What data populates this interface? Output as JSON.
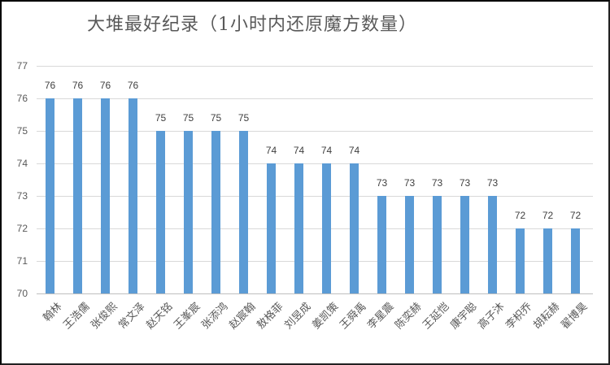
{
  "chart_data": {
    "type": "bar",
    "title": "大堆最好纪录（1小时内还原魔方数量）",
    "xlabel": "",
    "ylabel": "",
    "ylim": [
      70,
      77
    ],
    "yticks": [
      "70",
      "71",
      "72",
      "73",
      "74",
      "75",
      "76",
      "77"
    ],
    "grid": true,
    "legend": "none",
    "bar_color": "#5B9BD5",
    "data_labels": true,
    "categories": [
      "翰林",
      "王浩儒",
      "张俊熙",
      "常文泽",
      "赵天铭",
      "王峯宸",
      "张添鸿",
      "赵宸翰",
      "敖格菲",
      "刘昱成",
      "姜凯策",
      "王舜禹",
      "李星震",
      "陈奕赫",
      "王延恺",
      "康宇聪",
      "高子沐",
      "李枳乔",
      "胡耘赫",
      "翟博昊"
    ],
    "values": [
      76,
      76,
      76,
      76,
      75,
      75,
      75,
      75,
      74,
      74,
      74,
      74,
      73,
      73,
      73,
      73,
      73,
      72,
      72,
      72
    ],
    "value_labels": [
      "76",
      "76",
      "76",
      "76",
      "75",
      "75",
      "75",
      "75",
      "74",
      "74",
      "74",
      "74",
      "73",
      "73",
      "73",
      "73",
      "73",
      "72",
      "72",
      "72"
    ]
  }
}
